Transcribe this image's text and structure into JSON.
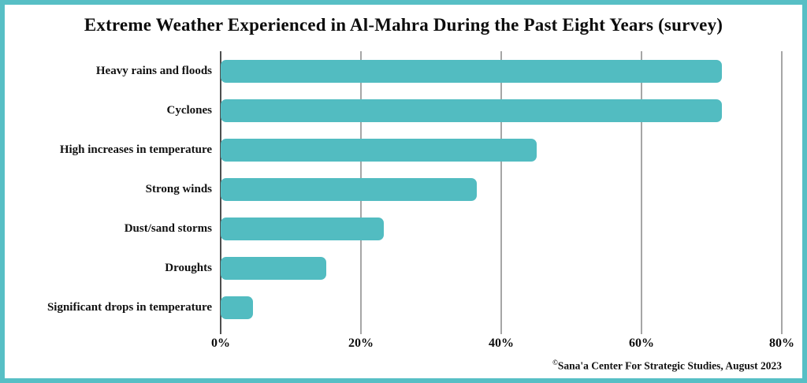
{
  "frame": {
    "border_color": "#57BFC5",
    "background": "#ffffff"
  },
  "chart_data": {
    "type": "bar",
    "orientation": "horizontal",
    "title": "Extreme Weather Experienced in Al-Mahra During the Past Eight Years (survey)",
    "categories": [
      "Heavy rains and floods",
      "Cyclones",
      "High increases in temperature",
      "Strong winds",
      "Dust/sand storms",
      "Droughts",
      "Significant drops in temperature"
    ],
    "values": [
      71.5,
      71.5,
      45,
      36.5,
      23.3,
      15,
      4.6
    ],
    "unit": "%",
    "xlabel": "",
    "ylabel": "",
    "xlim": [
      0,
      80
    ],
    "x_ticks": [
      "0%",
      "20%",
      "40%",
      "60%",
      "80%"
    ],
    "grid": "vertical",
    "legend": "none",
    "bar_color": "#52BCC1",
    "gridline_color": "#A6A6A6",
    "axis_line_color": "#4F4F4F"
  },
  "footer": {
    "symbol": "©",
    "text": "Sana'a Center For Strategic Studies, August 2023"
  }
}
